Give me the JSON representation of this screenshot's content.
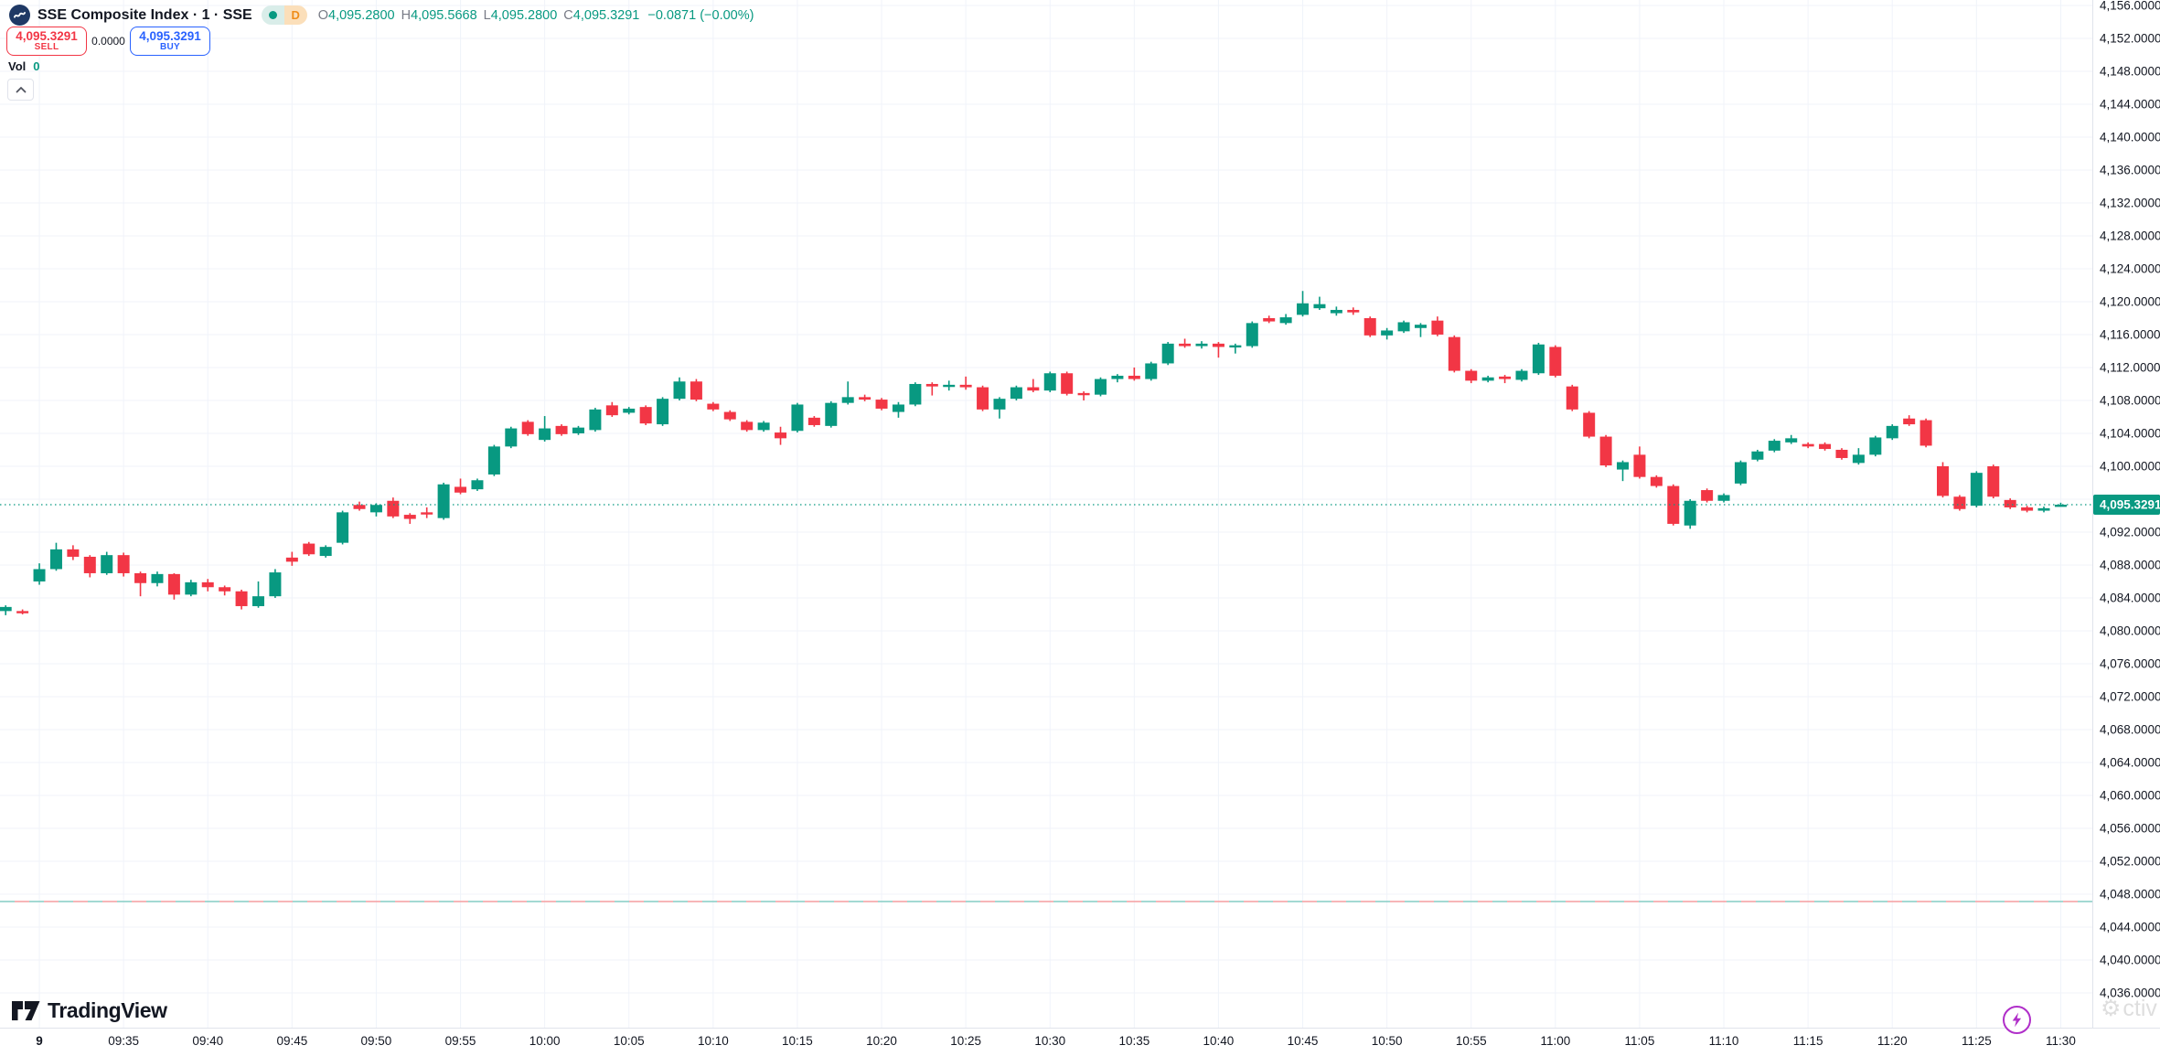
{
  "header": {
    "symbol_title": "SSE Composite Index · 1 · SSE",
    "status_badge": "D",
    "ohlc": {
      "o_label": "O",
      "o": "4,095.2800",
      "h_label": "H",
      "h": "4,095.5668",
      "l_label": "L",
      "l": "4,095.2800",
      "c_label": "C",
      "c": "4,095.3291",
      "change": "−0.0871 (−0.00%)"
    }
  },
  "trade_panel": {
    "sell_price": "4,095.3291",
    "sell_label": "SELL",
    "spread": "0.0000",
    "buy_price": "4,095.3291",
    "buy_label": "BUY"
  },
  "volume": {
    "label": "Vol",
    "value": "0"
  },
  "footer": {
    "logo_text": "TradingView"
  },
  "watermark": "ctiv",
  "price_axis": {
    "current_price_label": "4,095.3291",
    "ticks": [
      "4,156.0000",
      "4,152.0000",
      "4,148.0000",
      "4,144.0000",
      "4,140.0000",
      "4,136.0000",
      "4,132.0000",
      "4,128.0000",
      "4,124.0000",
      "4,120.0000",
      "4,116.0000",
      "4,112.0000",
      "4,108.0000",
      "4,104.0000",
      "4,100.0000",
      "4,096.0000",
      "4,092.0000",
      "4,088.0000",
      "4,084.0000",
      "4,080.0000",
      "4,076.0000",
      "4,072.0000",
      "4,068.0000",
      "4,064.0000",
      "4,060.0000",
      "4,056.0000",
      "4,052.0000",
      "4,048.0000",
      "4,044.0000",
      "4,040.0000",
      "4,036.0000"
    ]
  },
  "time_axis": {
    "ticks": [
      "9",
      "09:35",
      "09:40",
      "09:45",
      "09:50",
      "09:55",
      "10:00",
      "10:05",
      "10:10",
      "10:15",
      "10:20",
      "10:25",
      "10:30",
      "10:35",
      "10:40",
      "10:45",
      "10:50",
      "10:55",
      "11:00",
      "11:05",
      "11:10",
      "11:15",
      "11:20",
      "11:25",
      "11:30"
    ]
  },
  "colors": {
    "up": "#089981",
    "down": "#f23645",
    "buy_accent": "#2962ff",
    "sell_accent": "#f23645",
    "grid": "#f0f3fa",
    "axis_border": "#e0e3eb",
    "axis_text": "#131722",
    "current_price": "#089981",
    "level_line_teal": "#8fd0c9",
    "level_line_red": "#f5a5a8",
    "flash_icon": "#b02fc9"
  },
  "chart_data": {
    "type": "candlestick",
    "symbol": "SSE Composite Index",
    "interval_minutes": 1,
    "session_start_index": 2,
    "session_start_time": "09:30",
    "session_end_time": "11:30",
    "current_price": 4095.3291,
    "level_line_price": 4047.1,
    "price_tick_values": [
      4156,
      4152,
      4148,
      4144,
      4140,
      4136,
      4132,
      4128,
      4124,
      4120,
      4116,
      4112,
      4108,
      4104,
      4100,
      4096,
      4092,
      4088,
      4084,
      4080,
      4076,
      4072,
      4068,
      4064,
      4060,
      4056,
      4052,
      4048,
      4044,
      4040,
      4036
    ],
    "ylim": [
      4034.0,
      4157.5
    ],
    "grid": true,
    "candles_ohlc": [
      [
        4082.4,
        4083.1,
        4081.9,
        4082.9
      ],
      [
        4082.4,
        4082.6,
        4082.0,
        4082.3
      ],
      [
        4086.0,
        4088.2,
        4085.6,
        4087.5
      ],
      [
        4087.5,
        4090.7,
        4087.3,
        4089.9
      ],
      [
        4089.9,
        4090.4,
        4088.6,
        4089.0
      ],
      [
        4089.0,
        4089.2,
        4086.5,
        4087.0
      ],
      [
        4087.0,
        4089.6,
        4086.8,
        4089.2
      ],
      [
        4089.2,
        4089.5,
        4086.6,
        4087.0
      ],
      [
        4087.0,
        4087.2,
        4084.2,
        4085.8
      ],
      [
        4085.8,
        4087.2,
        4085.4,
        4086.9
      ],
      [
        4086.9,
        4087.0,
        4083.8,
        4084.4
      ],
      [
        4084.4,
        4086.2,
        4084.2,
        4085.9
      ],
      [
        4085.9,
        4086.3,
        4084.8,
        4085.3
      ],
      [
        4085.3,
        4085.5,
        4084.3,
        4084.8
      ],
      [
        4084.8,
        4085.0,
        4082.6,
        4083.0
      ],
      [
        4083.0,
        4086.0,
        4082.8,
        4084.2
      ],
      [
        4084.2,
        4087.5,
        4084.0,
        4087.1
      ],
      [
        4088.9,
        4089.6,
        4087.9,
        4088.4
      ],
      [
        4090.6,
        4090.8,
        4089.1,
        4089.3
      ],
      [
        4089.1,
        4090.4,
        4088.9,
        4090.2
      ],
      [
        4090.7,
        4094.6,
        4090.5,
        4094.4
      ],
      [
        4095.3,
        4095.7,
        4094.6,
        4094.8
      ],
      [
        4094.4,
        4095.5,
        4093.9,
        4095.3
      ],
      [
        4095.8,
        4096.2,
        4093.7,
        4093.9
      ],
      [
        4094.1,
        4094.3,
        4093.0,
        4093.6
      ],
      [
        4094.4,
        4095.0,
        4093.7,
        4094.2
      ],
      [
        4093.7,
        4098.0,
        4093.5,
        4097.8
      ],
      [
        4097.5,
        4098.5,
        4096.6,
        4096.8
      ],
      [
        4097.2,
        4098.5,
        4097.0,
        4098.3
      ],
      [
        4099.0,
        4102.6,
        4098.8,
        4102.4
      ],
      [
        4102.4,
        4104.8,
        4102.2,
        4104.6
      ],
      [
        4105.4,
        4105.6,
        4103.7,
        4103.9
      ],
      [
        4103.2,
        4106.1,
        4103.0,
        4104.6
      ],
      [
        4104.9,
        4105.1,
        4103.7,
        4103.9
      ],
      [
        4104.0,
        4104.9,
        4103.8,
        4104.7
      ],
      [
        4104.4,
        4107.1,
        4104.2,
        4106.9
      ],
      [
        4107.4,
        4107.8,
        4106.0,
        4106.2
      ],
      [
        4106.5,
        4107.2,
        4106.3,
        4107.0
      ],
      [
        4107.2,
        4107.4,
        4105.0,
        4105.2
      ],
      [
        4105.1,
        4108.4,
        4104.9,
        4108.2
      ],
      [
        4108.2,
        4110.8,
        4108.0,
        4110.3
      ],
      [
        4110.3,
        4110.6,
        4107.9,
        4108.1
      ],
      [
        4107.6,
        4107.8,
        4106.7,
        4106.9
      ],
      [
        4106.6,
        4106.8,
        4105.5,
        4105.7
      ],
      [
        4105.4,
        4105.6,
        4104.2,
        4104.4
      ],
      [
        4104.4,
        4105.5,
        4104.2,
        4105.3
      ],
      [
        4104.1,
        4104.8,
        4102.6,
        4103.4
      ],
      [
        4104.3,
        4107.7,
        4104.1,
        4107.5
      ],
      [
        4105.9,
        4106.1,
        4104.8,
        4105.0
      ],
      [
        4104.9,
        4107.9,
        4104.7,
        4107.7
      ],
      [
        4107.7,
        4110.3,
        4107.5,
        4108.4
      ],
      [
        4108.4,
        4108.7,
        4107.9,
        4108.1
      ],
      [
        4108.1,
        4108.3,
        4106.8,
        4107.0
      ],
      [
        4106.6,
        4107.8,
        4105.9,
        4107.5
      ],
      [
        4107.5,
        4110.2,
        4107.3,
        4110.0
      ],
      [
        4110.0,
        4110.2,
        4108.6,
        4109.7
      ],
      [
        4109.7,
        4110.4,
        4109.2,
        4109.9
      ],
      [
        4109.9,
        4110.9,
        4109.3,
        4109.6
      ],
      [
        4109.6,
        4109.8,
        4106.7,
        4106.9
      ],
      [
        4106.9,
        4108.4,
        4105.8,
        4108.2
      ],
      [
        4108.2,
        4109.8,
        4108.0,
        4109.6
      ],
      [
        4109.6,
        4110.6,
        4109.0,
        4109.2
      ],
      [
        4109.2,
        4111.5,
        4109.0,
        4111.3
      ],
      [
        4111.3,
        4111.5,
        4108.6,
        4108.8
      ],
      [
        4108.9,
        4109.1,
        4108.0,
        4108.7
      ],
      [
        4108.7,
        4110.8,
        4108.5,
        4110.6
      ],
      [
        4110.6,
        4111.2,
        4110.2,
        4111.0
      ],
      [
        4111.0,
        4112.0,
        4110.4,
        4110.6
      ],
      [
        4110.6,
        4112.7,
        4110.4,
        4112.5
      ],
      [
        4112.5,
        4115.1,
        4112.3,
        4114.9
      ],
      [
        4114.9,
        4115.5,
        4114.4,
        4114.6
      ],
      [
        4114.6,
        4115.2,
        4114.3,
        4114.9
      ],
      [
        4114.9,
        4115.1,
        4113.2,
        4114.5
      ],
      [
        4114.5,
        4114.9,
        4113.7,
        4114.7
      ],
      [
        4114.6,
        4117.6,
        4114.4,
        4117.4
      ],
      [
        4118.0,
        4118.3,
        4117.4,
        4117.6
      ],
      [
        4117.4,
        4118.5,
        4117.2,
        4118.1
      ],
      [
        4118.4,
        4121.3,
        4118.2,
        4119.8
      ],
      [
        4119.2,
        4120.6,
        4119.0,
        4119.7
      ],
      [
        4118.6,
        4119.4,
        4118.3,
        4119.0
      ],
      [
        4119.0,
        4119.3,
        4118.4,
        4118.7
      ],
      [
        4118.0,
        4118.2,
        4115.7,
        4115.9
      ],
      [
        4115.9,
        4116.8,
        4115.4,
        4116.5
      ],
      [
        4116.4,
        4117.7,
        4116.2,
        4117.5
      ],
      [
        4116.8,
        4117.4,
        4115.7,
        4117.2
      ],
      [
        4117.7,
        4118.2,
        4115.8,
        4116.0
      ],
      [
        4115.7,
        4115.9,
        4111.4,
        4111.6
      ],
      [
        4111.6,
        4111.8,
        4110.1,
        4110.4
      ],
      [
        4110.4,
        4111.0,
        4110.2,
        4110.8
      ],
      [
        4110.9,
        4111.1,
        4110.1,
        4110.6
      ],
      [
        4110.5,
        4111.8,
        4110.3,
        4111.6
      ],
      [
        4111.3,
        4115.0,
        4111.1,
        4114.8
      ],
      [
        4114.5,
        4114.7,
        4110.8,
        4111.0
      ],
      [
        4109.7,
        4109.9,
        4106.7,
        4106.9
      ],
      [
        4106.5,
        4106.7,
        4103.4,
        4103.6
      ],
      [
        4103.6,
        4103.8,
        4099.9,
        4100.1
      ],
      [
        4099.6,
        4100.7,
        4098.2,
        4100.5
      ],
      [
        4101.4,
        4102.4,
        4098.5,
        4098.7
      ],
      [
        4098.7,
        4098.9,
        4097.4,
        4097.6
      ],
      [
        4097.6,
        4097.8,
        4092.8,
        4093.0
      ],
      [
        4092.8,
        4096.0,
        4092.4,
        4095.8
      ],
      [
        4097.1,
        4097.3,
        4095.6,
        4095.8
      ],
      [
        4095.8,
        4096.7,
        4095.6,
        4096.5
      ],
      [
        4097.9,
        4100.7,
        4097.7,
        4100.5
      ],
      [
        4100.8,
        4102.0,
        4100.6,
        4101.8
      ],
      [
        4101.9,
        4103.3,
        4101.7,
        4103.1
      ],
      [
        4102.9,
        4103.8,
        4102.7,
        4103.4
      ],
      [
        4102.7,
        4102.9,
        4102.2,
        4102.4
      ],
      [
        4102.7,
        4102.9,
        4101.9,
        4102.1
      ],
      [
        4102.0,
        4102.2,
        4100.8,
        4101.0
      ],
      [
        4100.4,
        4102.2,
        4100.2,
        4101.4
      ],
      [
        4101.4,
        4103.7,
        4101.2,
        4103.5
      ],
      [
        4103.4,
        4105.1,
        4103.2,
        4104.9
      ],
      [
        4105.8,
        4106.2,
        4104.9,
        4105.1
      ],
      [
        4105.6,
        4105.8,
        4102.3,
        4102.5
      ],
      [
        4100.0,
        4100.5,
        4096.2,
        4096.4
      ],
      [
        4096.3,
        4096.5,
        4094.6,
        4094.8
      ],
      [
        4095.2,
        4099.4,
        4095.0,
        4099.2
      ],
      [
        4100.0,
        4100.2,
        4096.1,
        4096.3
      ],
      [
        4095.9,
        4096.1,
        4094.8,
        4095.0
      ],
      [
        4095.0,
        4095.2,
        4094.4,
        4094.6
      ],
      [
        4094.6,
        4095.1,
        4094.4,
        4094.9
      ],
      [
        4095.28,
        4095.5668,
        4095.28,
        4095.3291
      ]
    ]
  }
}
